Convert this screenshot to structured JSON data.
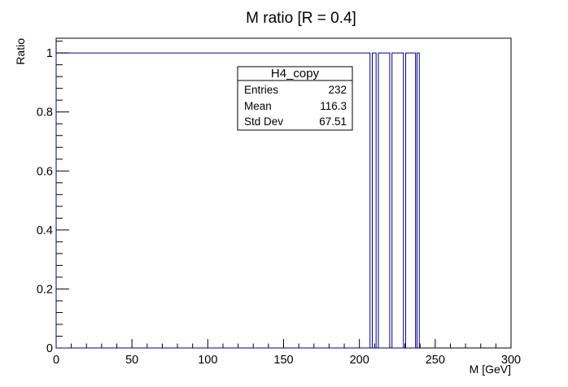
{
  "chart_data": {
    "type": "bar",
    "title": "M ratio [R = 0.4]",
    "xlabel": "M [GeV]",
    "ylabel": "Ratio",
    "xlim": [
      0,
      300
    ],
    "ylim": [
      0,
      1.05
    ],
    "grid": false,
    "xticks": [
      0,
      50,
      100,
      150,
      200,
      250,
      300
    ],
    "yticks": [
      0,
      0.2,
      0.4,
      0.6,
      0.8,
      1
    ],
    "line_color": "#000080",
    "series": [
      {
        "bins": [
          {
            "x0": 0,
            "x1": 207,
            "y": 1
          },
          {
            "x0": 207,
            "x1": 208.5,
            "y": 0
          },
          {
            "x0": 208.5,
            "x1": 211,
            "y": 1
          },
          {
            "x0": 211,
            "x1": 212.5,
            "y": 0
          },
          {
            "x0": 212.5,
            "x1": 220,
            "y": 1
          },
          {
            "x0": 220,
            "x1": 221.5,
            "y": 0
          },
          {
            "x0": 221.5,
            "x1": 229,
            "y": 1
          },
          {
            "x0": 229,
            "x1": 230.5,
            "y": 0
          },
          {
            "x0": 230.5,
            "x1": 237,
            "y": 1
          },
          {
            "x0": 237,
            "x1": 238,
            "y": 0
          },
          {
            "x0": 238,
            "x1": 239.5,
            "y": 1
          },
          {
            "x0": 239.5,
            "x1": 300,
            "y": 0
          }
        ]
      }
    ],
    "stats_box": {
      "name": "H4_copy",
      "rows": [
        {
          "label": "Entries",
          "value": "232"
        },
        {
          "label": "Mean",
          "value": "116.3"
        },
        {
          "label": "Std Dev",
          "value": "67.51"
        }
      ]
    }
  }
}
